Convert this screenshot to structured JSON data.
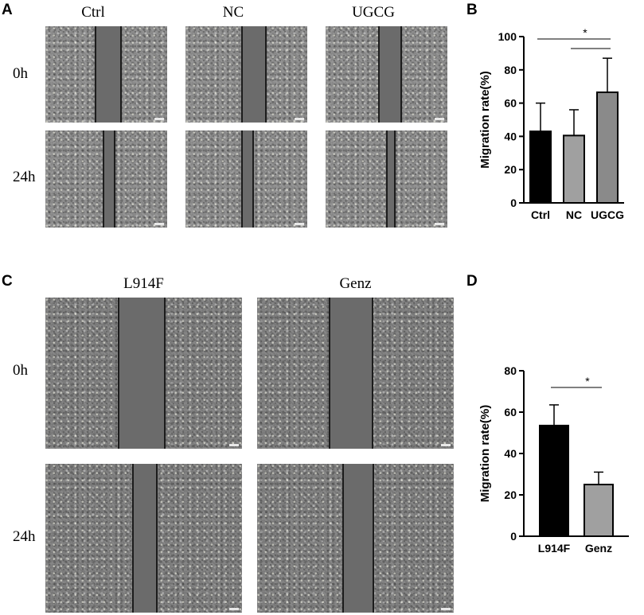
{
  "panels": {
    "A": {
      "letter": "A",
      "columns": [
        "Ctrl",
        "NC",
        "UGCG"
      ],
      "rows": [
        "0h",
        "24h"
      ]
    },
    "C": {
      "letter": "C",
      "columns": [
        "L914F",
        "Genz"
      ],
      "rows": [
        "0h",
        "24h"
      ]
    },
    "B": {
      "letter": "B"
    },
    "D": {
      "letter": "D"
    }
  },
  "chart_data": [
    {
      "panel": "B",
      "type": "bar",
      "categories": [
        "Ctrl",
        "NC",
        "UGCG"
      ],
      "values": [
        43,
        40.5,
        66.5
      ],
      "errors": [
        17,
        15.5,
        20.5
      ],
      "bar_colors": [
        "#000000",
        "#a0a0a0",
        "#8a8a8a"
      ],
      "ylabel": "Migration rate(%)",
      "ylim": [
        0,
        100
      ],
      "yticks": [
        0,
        20,
        40,
        60,
        80,
        100
      ],
      "significance": [
        {
          "from": "Ctrl",
          "to": "UGCG",
          "label": "*"
        },
        {
          "from": "NC",
          "to": "UGCG",
          "label": ""
        }
      ]
    },
    {
      "panel": "D",
      "type": "bar",
      "categories": [
        "L914F",
        "Genz"
      ],
      "values": [
        53.5,
        25
      ],
      "errors": [
        10,
        6
      ],
      "bar_colors": [
        "#000000",
        "#a0a0a0"
      ],
      "ylabel": "Migration rate(%)",
      "ylim": [
        0,
        80
      ],
      "yticks": [
        0,
        20,
        40,
        60,
        80
      ],
      "significance": [
        {
          "from": "L914F",
          "to": "Genz",
          "label": "*"
        }
      ]
    }
  ]
}
